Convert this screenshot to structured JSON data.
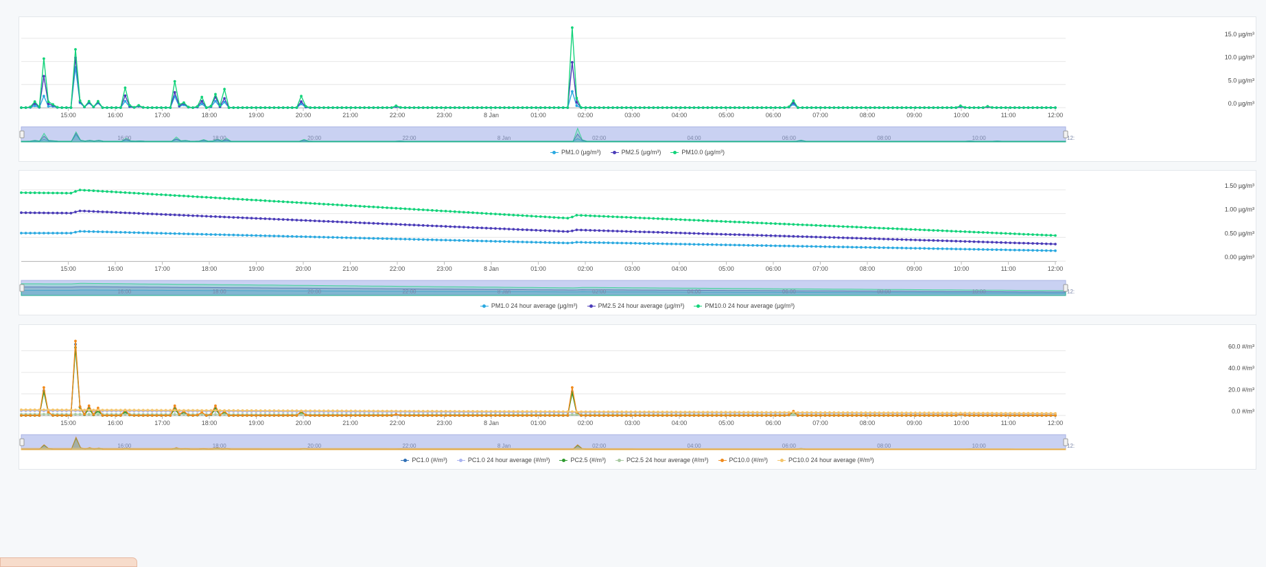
{
  "x_ticks": [
    "15:00",
    "16:00",
    "17:00",
    "18:00",
    "19:00",
    "20:00",
    "21:00",
    "22:00",
    "23:00",
    "8 Jan",
    "01:00",
    "02:00",
    "03:00",
    "04:00",
    "05:00",
    "06:00",
    "07:00",
    "08:00",
    "09:00",
    "10:00",
    "11:00",
    "12:00"
  ],
  "navigator_ticks": [
    "16:00",
    "18:00",
    "20:00",
    "22:00",
    "8 Jan",
    "02:00",
    "04:00",
    "06:00",
    "08:00",
    "10:00",
    "12:"
  ],
  "chart_data": [
    {
      "type": "line",
      "ylim": [
        0,
        17.5
      ],
      "yticks": [
        {
          "v": 0,
          "label": "0.0 µg/m³"
        },
        {
          "v": 5,
          "label": "5.0 µg/m³"
        },
        {
          "v": 10,
          "label": "10.0 µg/m³"
        },
        {
          "v": 15,
          "label": "15.0 µg/m³"
        }
      ],
      "grid": true,
      "legend_position": "bottom-center",
      "series": [
        {
          "name": "PM1.0 (µg/m³)",
          "color": "#2aa9e0",
          "marker": true,
          "peaks": [
            [
              14.3,
              0.4
            ],
            [
              14.5,
              2.5
            ],
            [
              14.7,
              0.3
            ],
            [
              15.2,
              8.7
            ],
            [
              15.4,
              1.0
            ],
            [
              15.6,
              1.0
            ],
            [
              16.25,
              1.4
            ],
            [
              16.5,
              0.3
            ],
            [
              17.3,
              2.4
            ],
            [
              17.5,
              0.6
            ],
            [
              17.8,
              0.8
            ],
            [
              18.1,
              1.4
            ],
            [
              18.3,
              1.2
            ],
            [
              20.0,
              0.8
            ],
            [
              22.0,
              0.2
            ],
            [
              25.75,
              3.5
            ],
            [
              30.4,
              0.7
            ],
            [
              34.0,
              0.2
            ],
            [
              34.6,
              0.2
            ]
          ]
        },
        {
          "name": "PM2.5 (µg/m³)",
          "color": "#4a3bb8",
          "marker": true,
          "peaks": [
            [
              14.3,
              0.9
            ],
            [
              14.5,
              6.8
            ],
            [
              14.7,
              0.5
            ],
            [
              15.2,
              10.8
            ],
            [
              15.4,
              1.2
            ],
            [
              15.6,
              1.2
            ],
            [
              16.25,
              2.6
            ],
            [
              16.5,
              0.4
            ],
            [
              17.3,
              3.3
            ],
            [
              17.5,
              0.9
            ],
            [
              17.8,
              1.4
            ],
            [
              18.1,
              2.3
            ],
            [
              18.3,
              2.0
            ],
            [
              20.0,
              1.3
            ],
            [
              22.0,
              0.3
            ],
            [
              25.75,
              9.8
            ],
            [
              30.4,
              1.1
            ],
            [
              34.0,
              0.3
            ],
            [
              34.6,
              0.2
            ]
          ]
        },
        {
          "name": "PM10.0 (µg/m³)",
          "color": "#12d37a",
          "marker": true,
          "peaks": [
            [
              14.3,
              1.3
            ],
            [
              14.5,
              10.6
            ],
            [
              14.7,
              0.7
            ],
            [
              15.2,
              12.6
            ],
            [
              15.4,
              1.4
            ],
            [
              15.6,
              1.4
            ],
            [
              16.25,
              4.3
            ],
            [
              16.5,
              0.5
            ],
            [
              17.3,
              5.7
            ],
            [
              17.5,
              1.1
            ],
            [
              17.8,
              2.3
            ],
            [
              18.1,
              2.9
            ],
            [
              18.3,
              4.0
            ],
            [
              20.0,
              2.5
            ],
            [
              22.0,
              0.4
            ],
            [
              25.75,
              17.3
            ],
            [
              30.4,
              1.5
            ],
            [
              34.0,
              0.4
            ],
            [
              34.6,
              0.3
            ]
          ]
        }
      ]
    },
    {
      "type": "line",
      "ylim": [
        0,
        1.7
      ],
      "yticks": [
        {
          "v": 0,
          "label": "0.00 µg/m³"
        },
        {
          "v": 0.5,
          "label": "0.50 µg/m³"
        },
        {
          "v": 1.0,
          "label": "1.00 µg/m³"
        },
        {
          "v": 1.5,
          "label": "1.50 µg/m³"
        }
      ],
      "grid": true,
      "legend_position": "bottom-center",
      "series": [
        {
          "name": "PM1.0 24 hour average (µg/m³)",
          "color": "#2aa9e0",
          "marker": true,
          "trend": [
            [
              14.0,
              0.59
            ],
            [
              15.1,
              0.59
            ],
            [
              15.2,
              0.63
            ],
            [
              25.7,
              0.38
            ],
            [
              25.75,
              0.4
            ],
            [
              36.0,
              0.22
            ]
          ]
        },
        {
          "name": "PM2.5 24 hour average (µg/m³)",
          "color": "#4a3bb8",
          "marker": true,
          "trend": [
            [
              14.0,
              1.02
            ],
            [
              15.1,
              1.01
            ],
            [
              15.2,
              1.06
            ],
            [
              25.7,
              0.62
            ],
            [
              25.75,
              0.66
            ],
            [
              36.0,
              0.36
            ]
          ]
        },
        {
          "name": "PM10.0 24 hour average (µg/m³)",
          "color": "#12d37a",
          "marker": true,
          "trend": [
            [
              14.0,
              1.44
            ],
            [
              15.1,
              1.43
            ],
            [
              15.2,
              1.5
            ],
            [
              25.7,
              0.9
            ],
            [
              25.75,
              0.97
            ],
            [
              36.0,
              0.54
            ]
          ]
        }
      ]
    },
    {
      "type": "line",
      "ylim": [
        0,
        75
      ],
      "yticks": [
        {
          "v": 0,
          "label": "0.0 #/m³"
        },
        {
          "v": 20,
          "label": "20.0 #/m³"
        },
        {
          "v": 40,
          "label": "40.0 #/m³"
        },
        {
          "v": 60,
          "label": "60.0 #/m³"
        }
      ],
      "grid": true,
      "legend_position": "bottom-center",
      "series": [
        {
          "name": "PC1.0 (#/m³)",
          "color": "#2f6fb5",
          "marker": true,
          "peaks": [
            [
              14.5,
              23
            ],
            [
              15.2,
              66
            ],
            [
              15.4,
              7
            ],
            [
              15.6,
              5
            ],
            [
              16.25,
              4
            ],
            [
              17.3,
              7
            ],
            [
              17.5,
              3
            ],
            [
              17.8,
              2
            ],
            [
              18.1,
              7
            ],
            [
              18.3,
              3
            ],
            [
              20.0,
              3
            ],
            [
              22.0,
              1
            ],
            [
              25.75,
              22
            ],
            [
              30.4,
              3
            ],
            [
              34.0,
              1
            ]
          ]
        },
        {
          "name": "PC1.0 24 hour average (#/m³)",
          "color": "#aab4f0",
          "marker": true,
          "trend": [
            [
              14.0,
              4.4
            ],
            [
              36.0,
              1.2
            ]
          ]
        },
        {
          "name": "PC2.5 (#/m³)",
          "color": "#2e9a2e",
          "marker": true,
          "peaks": [
            [
              14.5,
              22
            ],
            [
              15.2,
              63
            ],
            [
              15.4,
              6
            ],
            [
              15.6,
              4
            ],
            [
              16.25,
              3
            ],
            [
              17.3,
              6
            ],
            [
              17.5,
              2
            ],
            [
              17.8,
              2
            ],
            [
              18.1,
              6
            ],
            [
              18.3,
              3
            ],
            [
              20.0,
              3
            ],
            [
              22.0,
              1
            ],
            [
              25.75,
              21
            ],
            [
              30.4,
              3
            ],
            [
              34.0,
              1
            ]
          ]
        },
        {
          "name": "PC2.5 24 hour average (#/m³)",
          "color": "#a7c9a0",
          "marker": true,
          "trend": [
            [
              14.0,
              1.2
            ],
            [
              36.0,
              0.4
            ]
          ]
        },
        {
          "name": "PC10.0 (#/m³)",
          "color": "#f08a1c",
          "marker": true,
          "peaks": [
            [
              14.5,
              26
            ],
            [
              15.2,
              69
            ],
            [
              15.4,
              9
            ],
            [
              15.6,
              7
            ],
            [
              16.25,
              5
            ],
            [
              17.3,
              9
            ],
            [
              17.5,
              4
            ],
            [
              17.8,
              3
            ],
            [
              18.1,
              9
            ],
            [
              18.3,
              4
            ],
            [
              20.0,
              4
            ],
            [
              22.0,
              1
            ],
            [
              25.75,
              26
            ],
            [
              30.4,
              4
            ],
            [
              34.0,
              1
            ]
          ]
        },
        {
          "name": "PC10.0 24 hour average (#/m³)",
          "color": "#f4c46a",
          "marker": true,
          "trend": [
            [
              14.0,
              5.3
            ],
            [
              36.0,
              2.0
            ]
          ]
        }
      ]
    }
  ]
}
